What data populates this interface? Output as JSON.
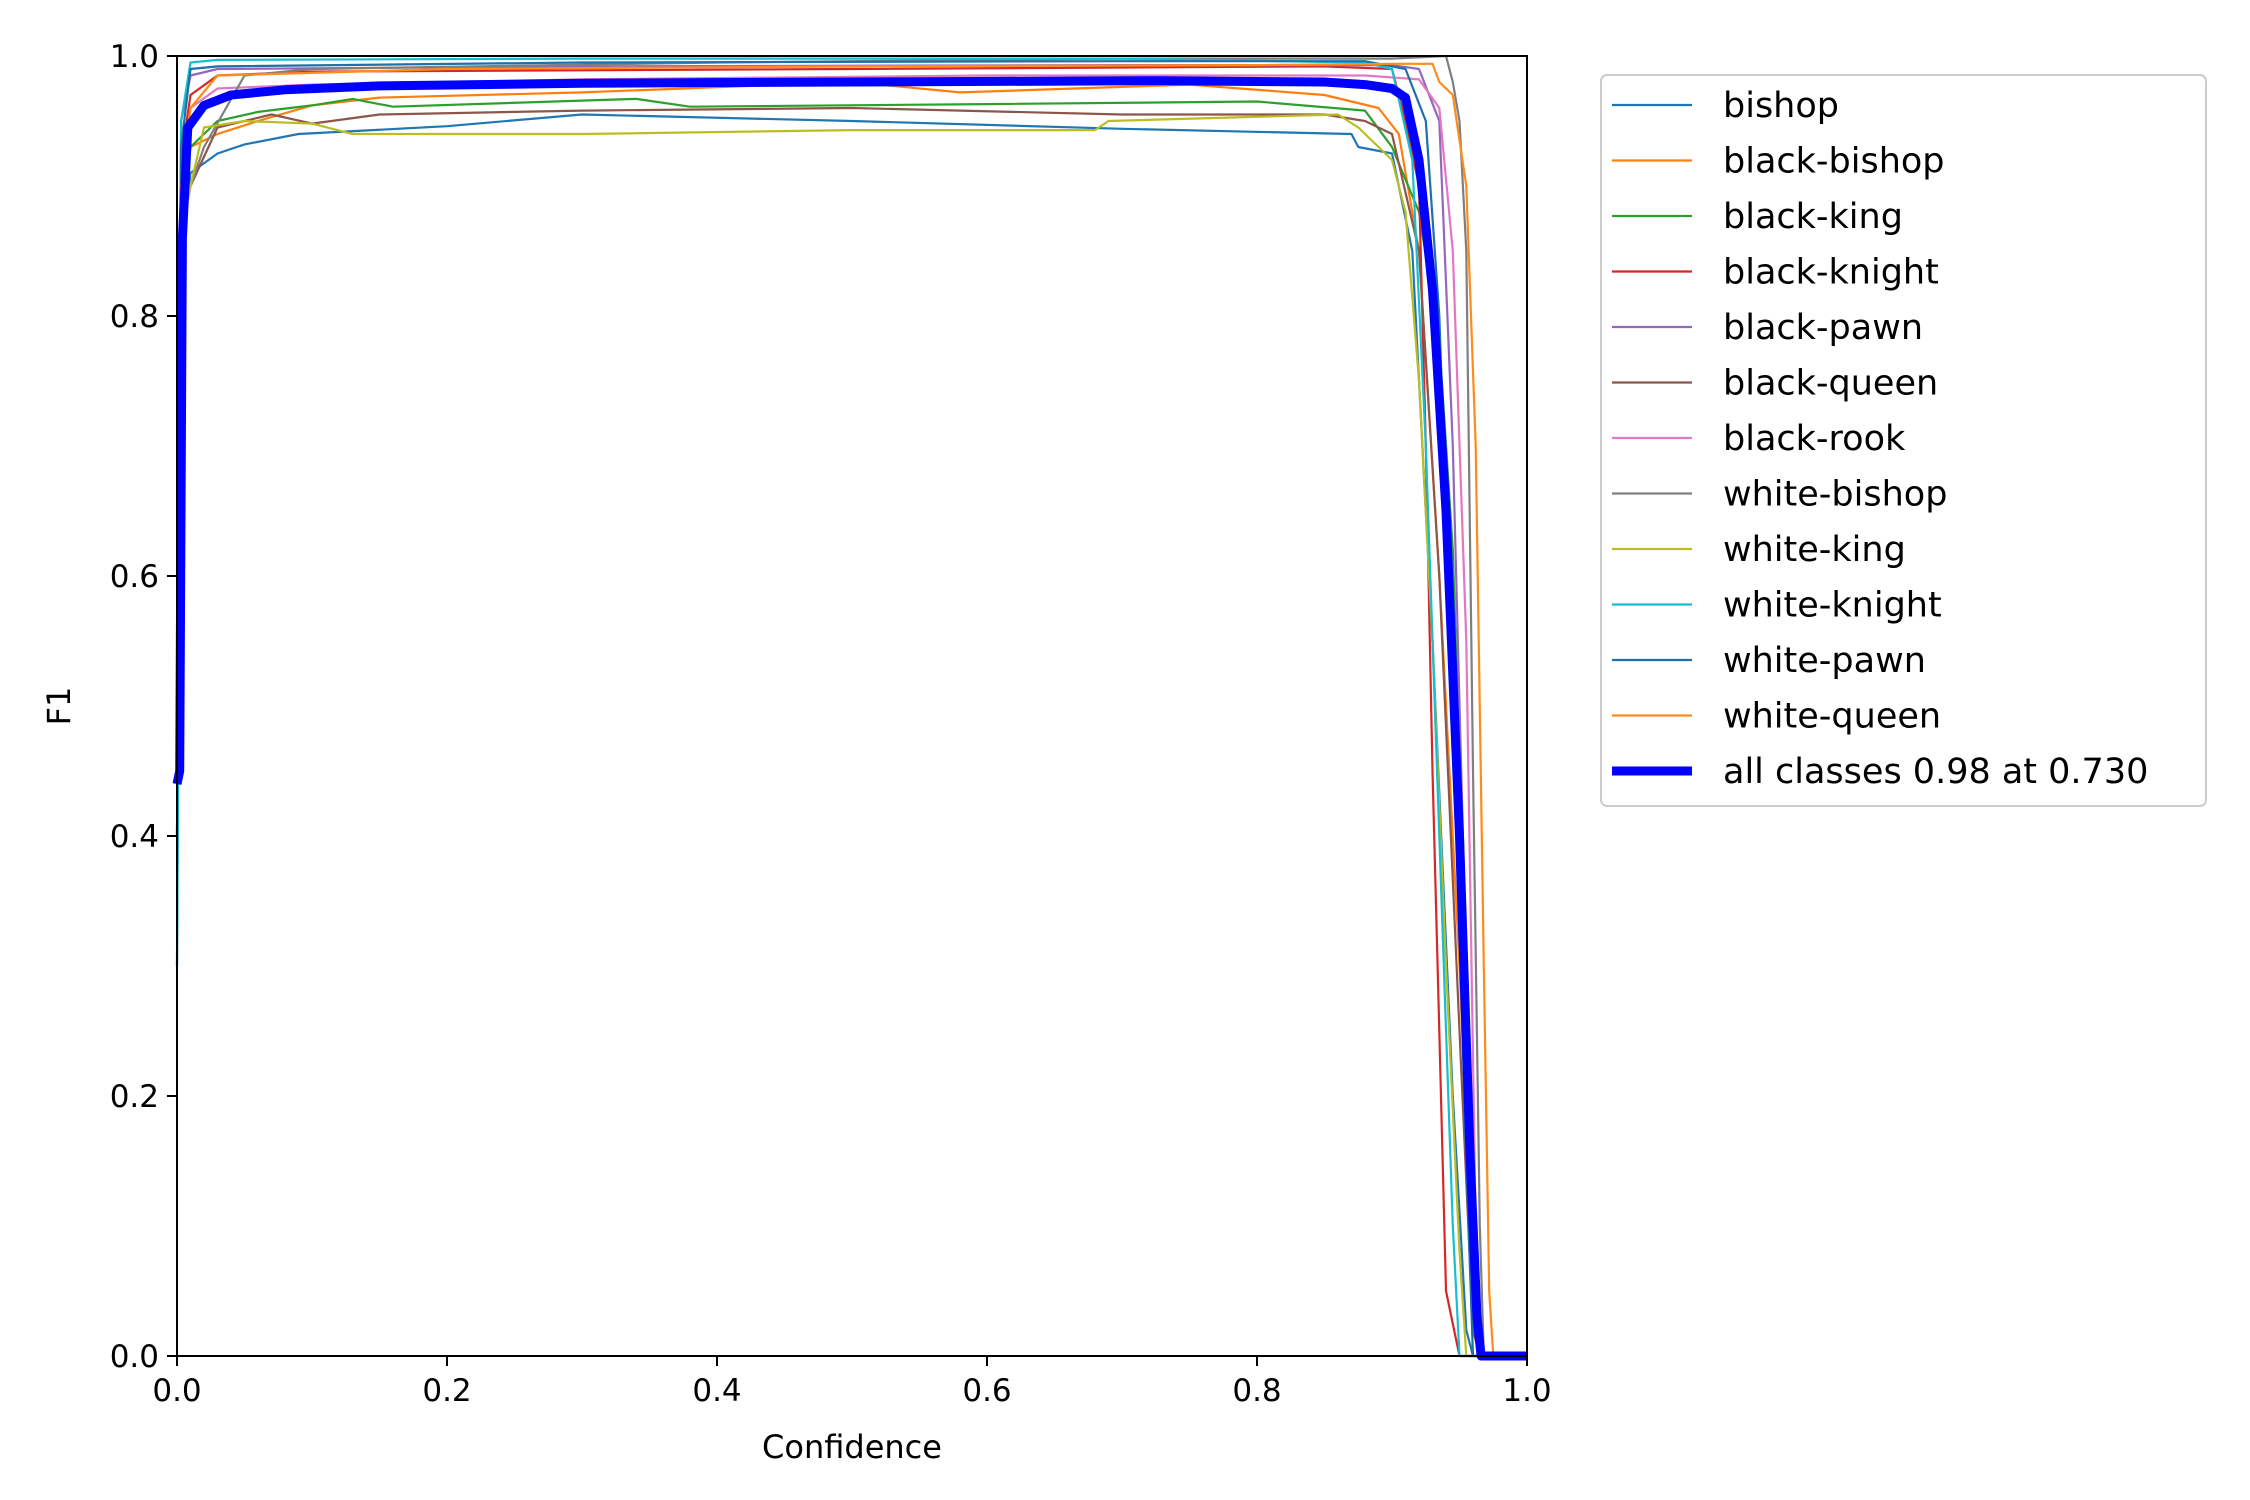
{
  "chart_data": {
    "type": "line",
    "title": "",
    "xlabel": "Confidence",
    "ylabel": "F1",
    "xlim": [
      0,
      1
    ],
    "ylim": [
      0,
      1
    ],
    "xticks": [
      "0.0",
      "0.2",
      "0.4",
      "0.6",
      "0.8",
      "1.0"
    ],
    "yticks": [
      "0.0",
      "0.2",
      "0.4",
      "0.6",
      "0.8",
      "1.0"
    ],
    "grid": false,
    "legend_position": "outside-top-right",
    "series": [
      {
        "name": "bishop",
        "color": "#1f77b4",
        "points": [
          [
            0,
            0.3
          ],
          [
            0.003,
            0.85
          ],
          [
            0.01,
            0.91
          ],
          [
            0.03,
            0.925
          ],
          [
            0.05,
            0.932
          ],
          [
            0.09,
            0.94
          ],
          [
            0.2,
            0.946
          ],
          [
            0.3,
            0.955
          ],
          [
            0.5,
            0.95
          ],
          [
            0.7,
            0.944
          ],
          [
            0.87,
            0.94
          ],
          [
            0.875,
            0.93
          ],
          [
            0.9,
            0.925
          ],
          [
            0.915,
            0.85
          ],
          [
            0.93,
            0.55
          ],
          [
            0.945,
            0.2
          ],
          [
            0.955,
            0.02
          ],
          [
            0.96,
            0
          ],
          [
            1.0,
            0
          ]
        ]
      },
      {
        "name": "black-bishop",
        "color": "#ff7f0e",
        "points": [
          [
            0,
            0.4
          ],
          [
            0.003,
            0.88
          ],
          [
            0.01,
            0.93
          ],
          [
            0.03,
            0.94
          ],
          [
            0.06,
            0.95
          ],
          [
            0.1,
            0.962
          ],
          [
            0.15,
            0.968
          ],
          [
            0.3,
            0.972
          ],
          [
            0.5,
            0.98
          ],
          [
            0.58,
            0.972
          ],
          [
            0.75,
            0.978
          ],
          [
            0.85,
            0.97
          ],
          [
            0.89,
            0.96
          ],
          [
            0.905,
            0.94
          ],
          [
            0.92,
            0.85
          ],
          [
            0.935,
            0.6
          ],
          [
            0.95,
            0.3
          ],
          [
            0.96,
            0.05
          ],
          [
            0.965,
            0
          ],
          [
            1.0,
            0
          ]
        ]
      },
      {
        "name": "black-king",
        "color": "#2ca02c",
        "points": [
          [
            0,
            0.45
          ],
          [
            0.003,
            0.88
          ],
          [
            0.01,
            0.93
          ],
          [
            0.03,
            0.95
          ],
          [
            0.06,
            0.957
          ],
          [
            0.1,
            0.962
          ],
          [
            0.13,
            0.967
          ],
          [
            0.16,
            0.961
          ],
          [
            0.34,
            0.967
          ],
          [
            0.38,
            0.961
          ],
          [
            0.6,
            0.963
          ],
          [
            0.8,
            0.965
          ],
          [
            0.88,
            0.958
          ],
          [
            0.9,
            0.93
          ],
          [
            0.92,
            0.88
          ],
          [
            0.935,
            0.78
          ],
          [
            0.945,
            0.62
          ],
          [
            0.955,
            0.3
          ],
          [
            0.96,
            0.05
          ],
          [
            0.965,
            0
          ],
          [
            1.0,
            0
          ]
        ]
      },
      {
        "name": "black-knight",
        "color": "#d62728",
        "points": [
          [
            0,
            0.5
          ],
          [
            0.003,
            0.92
          ],
          [
            0.01,
            0.97
          ],
          [
            0.03,
            0.985
          ],
          [
            0.1,
            0.988
          ],
          [
            0.5,
            0.99
          ],
          [
            0.85,
            0.992
          ],
          [
            0.9,
            0.99
          ],
          [
            0.91,
            0.95
          ],
          [
            0.92,
            0.9
          ],
          [
            0.925,
            0.7
          ],
          [
            0.93,
            0.45
          ],
          [
            0.935,
            0.25
          ],
          [
            0.94,
            0.05
          ],
          [
            0.95,
            0
          ],
          [
            1.0,
            0
          ]
        ]
      },
      {
        "name": "black-pawn",
        "color": "#9467bd",
        "points": [
          [
            0,
            0.6
          ],
          [
            0.003,
            0.95
          ],
          [
            0.01,
            0.985
          ],
          [
            0.03,
            0.99
          ],
          [
            0.3,
            0.992
          ],
          [
            0.7,
            0.993
          ],
          [
            0.9,
            0.993
          ],
          [
            0.92,
            0.99
          ],
          [
            0.935,
            0.95
          ],
          [
            0.945,
            0.7
          ],
          [
            0.955,
            0.3
          ],
          [
            0.962,
            0.05
          ],
          [
            0.965,
            0
          ],
          [
            1.0,
            0
          ]
        ]
      },
      {
        "name": "black-queen",
        "color": "#8c564b",
        "points": [
          [
            0,
            0.4
          ],
          [
            0.003,
            0.87
          ],
          [
            0.01,
            0.9
          ],
          [
            0.03,
            0.945
          ],
          [
            0.07,
            0.955
          ],
          [
            0.1,
            0.948
          ],
          [
            0.15,
            0.955
          ],
          [
            0.3,
            0.958
          ],
          [
            0.5,
            0.96
          ],
          [
            0.7,
            0.955
          ],
          [
            0.85,
            0.955
          ],
          [
            0.88,
            0.95
          ],
          [
            0.9,
            0.94
          ],
          [
            0.92,
            0.85
          ],
          [
            0.935,
            0.6
          ],
          [
            0.95,
            0.25
          ],
          [
            0.96,
            0.02
          ],
          [
            0.965,
            0
          ],
          [
            1.0,
            0
          ]
        ]
      },
      {
        "name": "black-rook",
        "color": "#e377c2",
        "points": [
          [
            0,
            0.4
          ],
          [
            0.003,
            0.9
          ],
          [
            0.01,
            0.96
          ],
          [
            0.03,
            0.975
          ],
          [
            0.1,
            0.978
          ],
          [
            0.3,
            0.982
          ],
          [
            0.6,
            0.985
          ],
          [
            0.88,
            0.985
          ],
          [
            0.92,
            0.982
          ],
          [
            0.935,
            0.96
          ],
          [
            0.945,
            0.85
          ],
          [
            0.955,
            0.55
          ],
          [
            0.962,
            0.1
          ],
          [
            0.966,
            0
          ],
          [
            1.0,
            0
          ]
        ]
      },
      {
        "name": "white-bishop",
        "color": "#7f7f7f",
        "points": [
          [
            0,
            0.45
          ],
          [
            0.003,
            0.88
          ],
          [
            0.01,
            0.9
          ],
          [
            0.02,
            0.93
          ],
          [
            0.05,
            0.985
          ],
          [
            0.1,
            0.99
          ],
          [
            0.4,
            0.995
          ],
          [
            0.7,
            0.998
          ],
          [
            0.9,
            0.998
          ],
          [
            0.94,
            1.0
          ],
          [
            0.945,
            0.98
          ],
          [
            0.95,
            0.95
          ],
          [
            0.955,
            0.85
          ],
          [
            0.96,
            0.45
          ],
          [
            0.965,
            0.1
          ],
          [
            0.968,
            0
          ],
          [
            1.0,
            0
          ]
        ]
      },
      {
        "name": "white-king",
        "color": "#bcbd22",
        "points": [
          [
            0,
            0.4
          ],
          [
            0.003,
            0.86
          ],
          [
            0.01,
            0.9
          ],
          [
            0.02,
            0.945
          ],
          [
            0.05,
            0.95
          ],
          [
            0.1,
            0.948
          ],
          [
            0.13,
            0.94
          ],
          [
            0.3,
            0.94
          ],
          [
            0.5,
            0.943
          ],
          [
            0.68,
            0.943
          ],
          [
            0.69,
            0.95
          ],
          [
            0.86,
            0.955
          ],
          [
            0.875,
            0.945
          ],
          [
            0.9,
            0.92
          ],
          [
            0.91,
            0.88
          ],
          [
            0.92,
            0.75
          ],
          [
            0.93,
            0.55
          ],
          [
            0.94,
            0.3
          ],
          [
            0.95,
            0.08
          ],
          [
            0.955,
            0
          ],
          [
            1.0,
            0
          ]
        ]
      },
      {
        "name": "white-knight",
        "color": "#17becf",
        "points": [
          [
            0,
            0.3
          ],
          [
            0.003,
            0.95
          ],
          [
            0.01,
            0.995
          ],
          [
            0.03,
            0.997
          ],
          [
            0.3,
            0.998
          ],
          [
            0.7,
            0.998
          ],
          [
            0.88,
            0.995
          ],
          [
            0.9,
            0.99
          ],
          [
            0.915,
            0.92
          ],
          [
            0.925,
            0.7
          ],
          [
            0.935,
            0.4
          ],
          [
            0.945,
            0.1
          ],
          [
            0.95,
            0
          ],
          [
            1.0,
            0
          ]
        ]
      },
      {
        "name": "white-pawn",
        "color": "#1f6fa8",
        "points": [
          [
            0,
            0.5
          ],
          [
            0.003,
            0.93
          ],
          [
            0.01,
            0.99
          ],
          [
            0.03,
            0.992
          ],
          [
            0.3,
            0.995
          ],
          [
            0.7,
            0.996
          ],
          [
            0.88,
            0.996
          ],
          [
            0.91,
            0.99
          ],
          [
            0.925,
            0.95
          ],
          [
            0.935,
            0.8
          ],
          [
            0.945,
            0.5
          ],
          [
            0.955,
            0.15
          ],
          [
            0.96,
            0
          ],
          [
            1.0,
            0
          ]
        ]
      },
      {
        "name": "white-queen",
        "color": "#ff8c1a",
        "points": [
          [
            0,
            0.45
          ],
          [
            0.003,
            0.9
          ],
          [
            0.01,
            0.96
          ],
          [
            0.03,
            0.985
          ],
          [
            0.2,
            0.99
          ],
          [
            0.5,
            0.992
          ],
          [
            0.8,
            0.993
          ],
          [
            0.9,
            0.994
          ],
          [
            0.93,
            0.994
          ],
          [
            0.935,
            0.98
          ],
          [
            0.945,
            0.97
          ],
          [
            0.955,
            0.9
          ],
          [
            0.962,
            0.7
          ],
          [
            0.968,
            0.3
          ],
          [
            0.972,
            0.05
          ],
          [
            0.975,
            0
          ],
          [
            1.0,
            0
          ]
        ]
      },
      {
        "name": "all classes 0.98 at 0.730",
        "color": "#0000ff",
        "bold": true,
        "points": [
          [
            0,
            0.44
          ],
          [
            0.002,
            0.45
          ],
          [
            0.004,
            0.86
          ],
          [
            0.008,
            0.945
          ],
          [
            0.02,
            0.962
          ],
          [
            0.04,
            0.97
          ],
          [
            0.08,
            0.974
          ],
          [
            0.15,
            0.977
          ],
          [
            0.3,
            0.979
          ],
          [
            0.5,
            0.98
          ],
          [
            0.73,
            0.981
          ],
          [
            0.85,
            0.98
          ],
          [
            0.88,
            0.978
          ],
          [
            0.9,
            0.975
          ],
          [
            0.91,
            0.968
          ],
          [
            0.92,
            0.92
          ],
          [
            0.93,
            0.82
          ],
          [
            0.94,
            0.65
          ],
          [
            0.95,
            0.4
          ],
          [
            0.958,
            0.15
          ],
          [
            0.963,
            0.03
          ],
          [
            0.966,
            0
          ],
          [
            1.0,
            0
          ]
        ]
      }
    ]
  }
}
